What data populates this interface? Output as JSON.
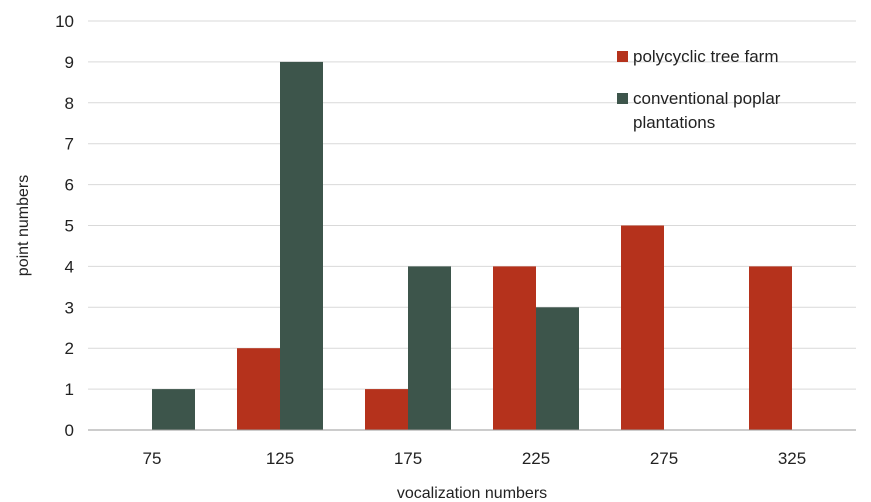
{
  "chart_data": {
    "type": "bar",
    "categories": [
      "75",
      "125",
      "175",
      "225",
      "275",
      "325"
    ],
    "series": [
      {
        "name": "polycyclic tree farm",
        "values": [
          0,
          2,
          1,
          4,
          5,
          4
        ],
        "color": "#b5321c"
      },
      {
        "name": "conventional poplar plantations",
        "values": [
          1,
          9,
          4,
          3,
          0,
          0
        ],
        "color": "#3d554b"
      }
    ],
    "xlabel": "vocalization numbers",
    "ylabel": "point numbers",
    "ylim": [
      0,
      10
    ],
    "yticks": [
      0,
      1,
      2,
      3,
      4,
      5,
      6,
      7,
      8,
      9,
      10
    ],
    "grid": true,
    "legend": "top-right",
    "legend_lines": [
      [
        "polycyclic tree farm"
      ],
      [
        "conventional poplar",
        "plantations"
      ]
    ]
  }
}
